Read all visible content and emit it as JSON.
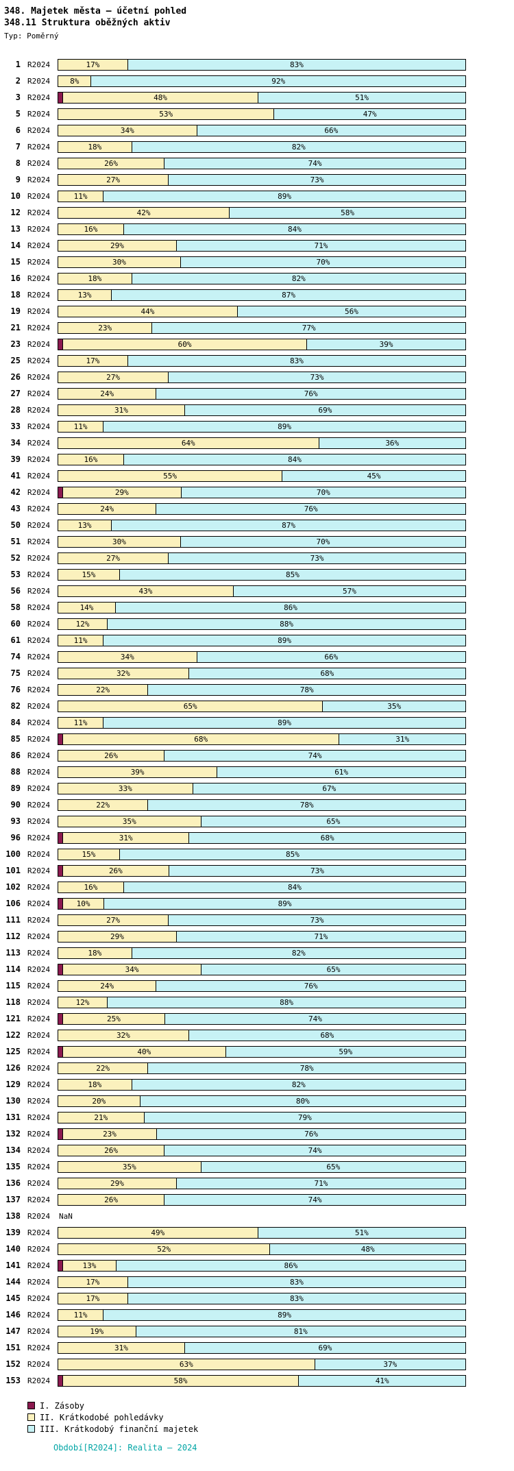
{
  "header": {
    "title": "348. Majetek města – účetní pohled",
    "subtitle": "348.11 Struktura oběžných aktiv",
    "type_label": "Typ: Poměrný"
  },
  "legend": [
    {
      "label": "I. Zásoby",
      "color": "#8B1A4F"
    },
    {
      "label": "II. Krátkodobé pohledávky",
      "color": "#FBF1BD"
    },
    {
      "label": "III. Krátkodobý finanční majetek",
      "color": "#C7F2F5"
    }
  ],
  "footer": {
    "text": "Období[R2024]: Realita – 2024",
    "color": "#00A5A5"
  },
  "chart_data": {
    "type": "bar",
    "orientation": "horizontal",
    "stacked": true,
    "unit": "%",
    "xlim": [
      0,
      100
    ],
    "grid": false,
    "legend_position": "bottom-left",
    "period_label": "R2024",
    "nan_label": "NaN",
    "series_names": [
      "I. Zásoby",
      "II. Krátkodobé pohledávky",
      "III. Krátkodobý finanční majetek"
    ],
    "series_keys": [
      "zasoby",
      "pohledavky",
      "financni"
    ],
    "colors": {
      "zasoby": "#8B1A4F",
      "pohledavky": "#FBF1BD",
      "financni": "#C7F2F5"
    },
    "label_min_value": 4,
    "rows": [
      {
        "n": "1",
        "v": [
          0,
          17,
          83
        ]
      },
      {
        "n": "2",
        "v": [
          0,
          8,
          92
        ]
      },
      {
        "n": "3",
        "v": [
          1,
          48,
          51
        ]
      },
      {
        "n": "5",
        "v": [
          0,
          53,
          47
        ]
      },
      {
        "n": "6",
        "v": [
          0,
          34,
          66
        ]
      },
      {
        "n": "7",
        "v": [
          0,
          18,
          82
        ]
      },
      {
        "n": "8",
        "v": [
          0,
          26,
          74
        ]
      },
      {
        "n": "9",
        "v": [
          0,
          27,
          73
        ]
      },
      {
        "n": "10",
        "v": [
          0,
          11,
          89
        ]
      },
      {
        "n": "12",
        "v": [
          0,
          42,
          58
        ]
      },
      {
        "n": "13",
        "v": [
          0,
          16,
          84
        ]
      },
      {
        "n": "14",
        "v": [
          0,
          29,
          71
        ]
      },
      {
        "n": "15",
        "v": [
          0,
          30,
          70
        ]
      },
      {
        "n": "16",
        "v": [
          0,
          18,
          82
        ]
      },
      {
        "n": "18",
        "v": [
          0,
          13,
          87
        ]
      },
      {
        "n": "19",
        "v": [
          0,
          44,
          56
        ]
      },
      {
        "n": "21",
        "v": [
          0,
          23,
          77
        ]
      },
      {
        "n": "23",
        "v": [
          1,
          60,
          39
        ]
      },
      {
        "n": "25",
        "v": [
          0,
          17,
          83
        ]
      },
      {
        "n": "26",
        "v": [
          0,
          27,
          73
        ]
      },
      {
        "n": "27",
        "v": [
          0,
          24,
          76
        ]
      },
      {
        "n": "28",
        "v": [
          0,
          31,
          69
        ]
      },
      {
        "n": "33",
        "v": [
          0,
          11,
          89
        ]
      },
      {
        "n": "34",
        "v": [
          0,
          64,
          36
        ]
      },
      {
        "n": "39",
        "v": [
          0,
          16,
          84
        ]
      },
      {
        "n": "41",
        "v": [
          0,
          55,
          45
        ]
      },
      {
        "n": "42",
        "v": [
          1,
          29,
          70
        ]
      },
      {
        "n": "43",
        "v": [
          0,
          24,
          76
        ]
      },
      {
        "n": "50",
        "v": [
          0,
          13,
          87
        ]
      },
      {
        "n": "51",
        "v": [
          0,
          30,
          70
        ]
      },
      {
        "n": "52",
        "v": [
          0,
          27,
          73
        ]
      },
      {
        "n": "53",
        "v": [
          0,
          15,
          85
        ]
      },
      {
        "n": "56",
        "v": [
          0,
          43,
          57
        ]
      },
      {
        "n": "58",
        "v": [
          0,
          14,
          86
        ]
      },
      {
        "n": "60",
        "v": [
          0,
          12,
          88
        ]
      },
      {
        "n": "61",
        "v": [
          0,
          11,
          89
        ]
      },
      {
        "n": "74",
        "v": [
          0,
          34,
          66
        ]
      },
      {
        "n": "75",
        "v": [
          0,
          32,
          68
        ]
      },
      {
        "n": "76",
        "v": [
          0,
          22,
          78
        ]
      },
      {
        "n": "82",
        "v": [
          0,
          65,
          35
        ]
      },
      {
        "n": "84",
        "v": [
          0,
          11,
          89
        ]
      },
      {
        "n": "85",
        "v": [
          1,
          68,
          31
        ]
      },
      {
        "n": "86",
        "v": [
          0,
          26,
          74
        ]
      },
      {
        "n": "88",
        "v": [
          0,
          39,
          61
        ]
      },
      {
        "n": "89",
        "v": [
          0,
          33,
          67
        ]
      },
      {
        "n": "90",
        "v": [
          0,
          22,
          78
        ]
      },
      {
        "n": "93",
        "v": [
          0,
          35,
          65
        ]
      },
      {
        "n": "96",
        "v": [
          1,
          31,
          68
        ]
      },
      {
        "n": "100",
        "v": [
          0,
          15,
          85
        ]
      },
      {
        "n": "101",
        "v": [
          1,
          26,
          73
        ]
      },
      {
        "n": "102",
        "v": [
          0,
          16,
          84
        ]
      },
      {
        "n": "106",
        "v": [
          1,
          10,
          89
        ]
      },
      {
        "n": "111",
        "v": [
          0,
          27,
          73
        ]
      },
      {
        "n": "112",
        "v": [
          0,
          29,
          71
        ]
      },
      {
        "n": "113",
        "v": [
          0,
          18,
          82
        ]
      },
      {
        "n": "114",
        "v": [
          1,
          34,
          65
        ]
      },
      {
        "n": "115",
        "v": [
          0,
          24,
          76
        ]
      },
      {
        "n": "118",
        "v": [
          0,
          12,
          88
        ]
      },
      {
        "n": "121",
        "v": [
          1,
          25,
          74
        ]
      },
      {
        "n": "122",
        "v": [
          0,
          32,
          68
        ]
      },
      {
        "n": "125",
        "v": [
          1,
          40,
          59
        ]
      },
      {
        "n": "126",
        "v": [
          0,
          22,
          78
        ]
      },
      {
        "n": "129",
        "v": [
          0,
          18,
          82
        ]
      },
      {
        "n": "130",
        "v": [
          0,
          20,
          80
        ]
      },
      {
        "n": "131",
        "v": [
          0,
          21,
          79
        ]
      },
      {
        "n": "132",
        "v": [
          1,
          23,
          76
        ]
      },
      {
        "n": "134",
        "v": [
          0,
          26,
          74
        ]
      },
      {
        "n": "135",
        "v": [
          0,
          35,
          65
        ]
      },
      {
        "n": "136",
        "v": [
          0,
          29,
          71
        ]
      },
      {
        "n": "137",
        "v": [
          0,
          26,
          74
        ]
      },
      {
        "n": "138",
        "nan": true
      },
      {
        "n": "139",
        "v": [
          0,
          49,
          51
        ]
      },
      {
        "n": "140",
        "v": [
          0,
          52,
          48
        ]
      },
      {
        "n": "141",
        "v": [
          1,
          13,
          86
        ]
      },
      {
        "n": "144",
        "v": [
          0,
          17,
          83
        ]
      },
      {
        "n": "145",
        "v": [
          0,
          17,
          83
        ]
      },
      {
        "n": "146",
        "v": [
          0,
          11,
          89
        ]
      },
      {
        "n": "147",
        "v": [
          0,
          19,
          81
        ]
      },
      {
        "n": "151",
        "v": [
          0,
          31,
          69
        ]
      },
      {
        "n": "152",
        "v": [
          0,
          63,
          37
        ]
      },
      {
        "n": "153",
        "v": [
          1,
          58,
          41
        ]
      }
    ]
  }
}
